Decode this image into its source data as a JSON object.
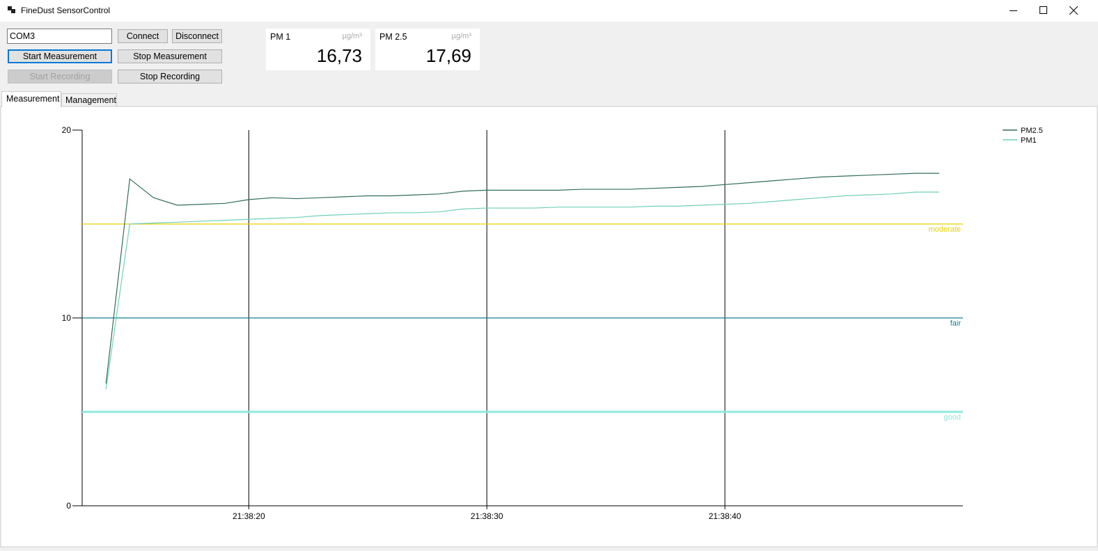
{
  "window": {
    "title": "FineDust SensorControl"
  },
  "controls": {
    "port": "COM3",
    "buttons": [
      "Connect",
      "Disconnect",
      "Start Measurement",
      "Stop Measurement",
      "Start Recording",
      "Stop Recording"
    ]
  },
  "readings": [
    {
      "label": "PM 1",
      "unit": "µg/m³",
      "value": "16,73"
    },
    {
      "label": "PM 2.5",
      "unit": "µg/m³",
      "value": "17,69"
    }
  ],
  "tabs": [
    "Measurement",
    "Management"
  ],
  "chart_data": {
    "type": "line",
    "x": [
      "21:38:14",
      "21:38:15",
      "21:38:16",
      "21:38:17",
      "21:38:18",
      "21:38:19",
      "21:38:20",
      "21:38:21",
      "21:38:22",
      "21:38:23",
      "21:38:24",
      "21:38:25",
      "21:38:26",
      "21:38:27",
      "21:38:28",
      "21:38:29",
      "21:38:30",
      "21:38:31",
      "21:38:32",
      "21:38:33",
      "21:38:34",
      "21:38:35",
      "21:38:36",
      "21:38:37",
      "21:38:38",
      "21:38:39",
      "21:38:40",
      "21:38:41",
      "21:38:42",
      "21:38:43",
      "21:38:44",
      "21:38:45",
      "21:38:46",
      "21:38:47",
      "21:38:48",
      "21:38:49"
    ],
    "series": [
      {
        "name": "PM2.5",
        "color": "#2f6e58",
        "values": [
          6.5,
          17.4,
          16.4,
          16.0,
          16.05,
          16.1,
          16.3,
          16.4,
          16.35,
          16.4,
          16.45,
          16.5,
          16.5,
          16.55,
          16.6,
          16.75,
          16.8,
          16.8,
          16.8,
          16.8,
          16.85,
          16.85,
          16.85,
          16.9,
          16.95,
          17.0,
          17.1,
          17.2,
          17.3,
          17.4,
          17.5,
          17.55,
          17.6,
          17.65,
          17.7,
          17.7
        ]
      },
      {
        "name": "PM1",
        "color": "#6fd0b8",
        "values": [
          6.2,
          15.0,
          15.05,
          15.1,
          15.15,
          15.2,
          15.25,
          15.3,
          15.35,
          15.45,
          15.5,
          15.55,
          15.6,
          15.6,
          15.65,
          15.8,
          15.85,
          15.85,
          15.85,
          15.9,
          15.9,
          15.9,
          15.9,
          15.95,
          15.95,
          16.0,
          16.05,
          16.1,
          16.2,
          16.3,
          16.4,
          16.5,
          16.55,
          16.6,
          16.7,
          16.7
        ]
      }
    ],
    "thresholds": [
      {
        "label": "moderate",
        "value": 15,
        "color": "#e8d200"
      },
      {
        "label": "fair",
        "value": 10,
        "color": "#137f8c"
      },
      {
        "label": "good",
        "value": 5,
        "color": "#8ee8dc"
      }
    ],
    "xlim": [
      "21:38:13",
      "21:38:50"
    ],
    "xticks": [
      "21:38:20",
      "21:38:30",
      "21:38:40"
    ],
    "xgrid": true,
    "ylim": [
      0,
      20
    ],
    "yticks": [
      0,
      10,
      20
    ],
    "legend": "top-right"
  }
}
